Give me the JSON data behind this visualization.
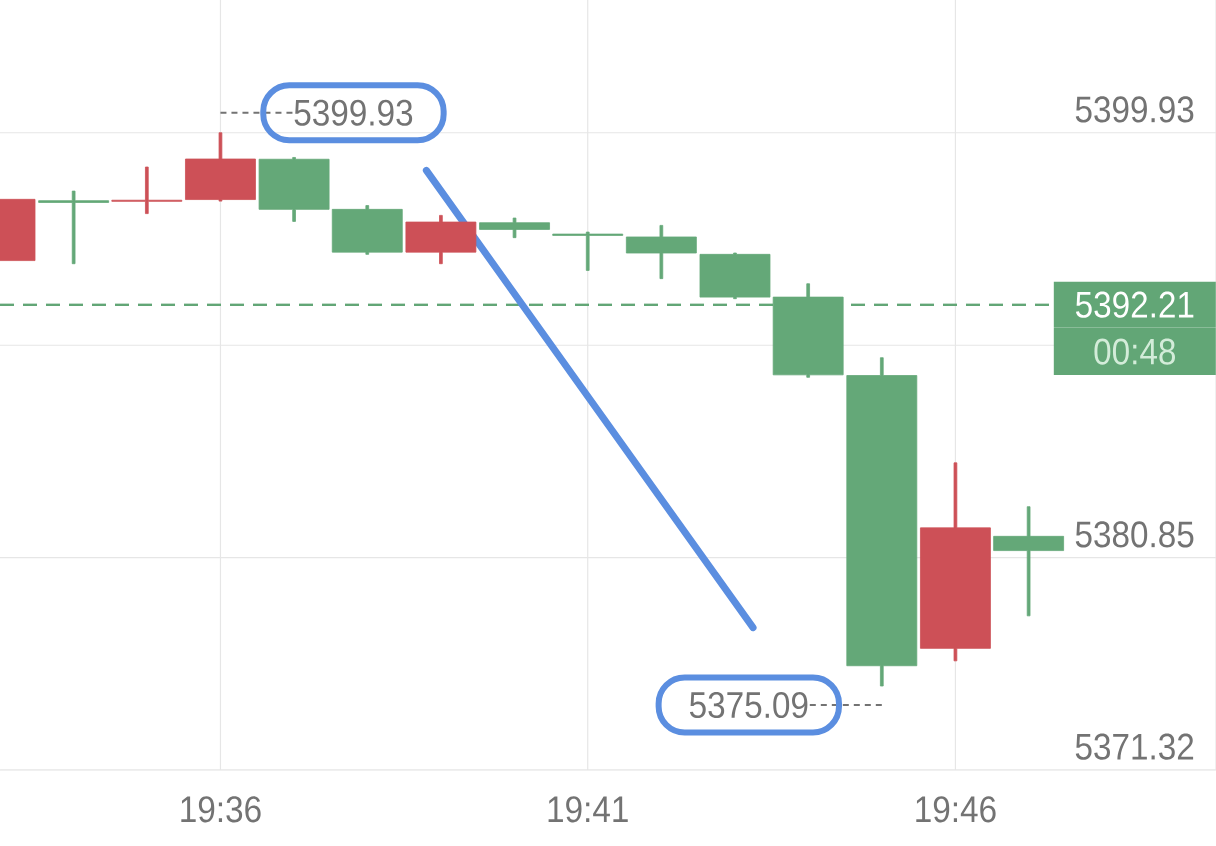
{
  "chart_data": {
    "type": "candlestick",
    "x": [
      19.55,
      19.5667,
      19.5833,
      19.6,
      19.6167,
      19.6333,
      19.65,
      19.6667,
      19.6833,
      19.7,
      19.7167,
      19.7333,
      19.75,
      19.7667,
      19.7833
    ],
    "ohlc": [
      [
        5394.19,
        5396.94,
        5394.19,
        5396.94
      ],
      [
        5396.88,
        5397.31,
        5394.05,
        5396.8
      ],
      [
        5396.85,
        5398.39,
        5396.3,
        5396.9
      ],
      [
        5396.93,
        5399.93,
        5396.86,
        5398.75
      ],
      [
        5398.74,
        5398.82,
        5395.95,
        5396.49
      ],
      [
        5396.49,
        5396.66,
        5394.47,
        5394.57
      ],
      [
        5394.57,
        5396.22,
        5394.05,
        5395.92
      ],
      [
        5395.89,
        5396.1,
        5395.22,
        5395.59
      ],
      [
        5395.38,
        5395.47,
        5393.75,
        5395.32
      ],
      [
        5395.25,
        5395.77,
        5393.38,
        5394.53
      ],
      [
        5394.47,
        5394.53,
        5392.48,
        5392.55
      ],
      [
        5392.55,
        5393.15,
        5388.95,
        5389.06
      ],
      [
        5389.03,
        5389.83,
        5375.09,
        5376.0
      ],
      [
        5376.78,
        5385.11,
        5376.22,
        5382.19
      ],
      [
        5381.81,
        5383.14,
        5378.24,
        5381.17
      ]
    ],
    "colors": [
      "#cd5057",
      "#64a878",
      "#cd5057",
      "#cd5057",
      "#64a878",
      "#64a878",
      "#cd5057",
      "#64a878",
      "#64a878",
      "#64a878",
      "#64a878",
      "#64a878",
      "#64a878",
      "#cd5057",
      "#64a878"
    ],
    "series": [
      {
        "type": "line",
        "x": [
          19.6467,
          19.7208
        ],
        "values": [
          5398.24,
          5377.71
        ],
        "color": "#5b8ee0"
      }
    ],
    "xlim": [
      19.55,
      19.8258
    ],
    "ylim": [
      5371.32,
      5405.89
    ],
    "xticks": [
      {
        "value": 19.6,
        "label": "19:36"
      },
      {
        "value": 19.6833,
        "label": "19:41"
      },
      {
        "value": 19.7667,
        "label": "19:46"
      }
    ],
    "yticks": [
      5371.32,
      5380.85,
      {
        "value": 5390.39,
        "label": null
      },
      5399.93
    ],
    "grid": true,
    "ref_lines": [
      {
        "axis": "y",
        "value": 5392.21,
        "label": "5392.21",
        "color": "#62a676",
        "line_style": "dashed"
      }
    ],
    "annotations": [
      {
        "text": "5399.93",
        "x": 19.6,
        "y": 5399.93
      },
      {
        "text": "5375.09",
        "x": 19.75,
        "y": 5375.09
      },
      "00:48"
    ]
  }
}
